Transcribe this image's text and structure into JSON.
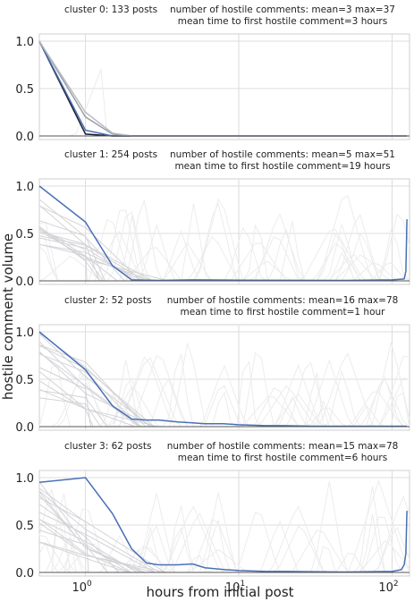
{
  "figure": {
    "xlabel": "hours from initial post",
    "ylabel": "hostile comment volume"
  },
  "chart_data": [
    {
      "type": "line",
      "title_left": "cluster 0: 133 posts",
      "title_right_line1": "number of hostile comments: mean=3 max=37",
      "title_right_line2": "mean time to first hostile comment=3 hours",
      "x_scale": "log",
      "xlim": [
        0.5,
        130
      ],
      "ylim": [
        0,
        1
      ],
      "yticks": [
        "0.0",
        "0.5",
        "1.0"
      ],
      "xticks": [
        "10^0",
        "10^1",
        "10^2"
      ],
      "grid": true,
      "series": [
        {
          "color": "#1a1a2e",
          "x": [
            0.5,
            1.0,
            1.5,
            2.0,
            5,
            10,
            50,
            125
          ],
          "y": [
            1.0,
            0.02,
            0.0,
            0.0,
            0.0,
            0.0,
            0.0,
            0.0
          ]
        },
        {
          "color": "#4a6fb5",
          "x": [
            0.5,
            1.0,
            1.5,
            2.0,
            10,
            125
          ],
          "y": [
            1.0,
            0.06,
            0.0,
            0.0,
            0.0,
            0.0
          ]
        },
        {
          "color": "#9aa0a8",
          "x": [
            0.5,
            1.0,
            1.5,
            2.0,
            10,
            125
          ],
          "y": [
            1.0,
            0.2,
            0.02,
            0.0,
            0.0,
            0.0
          ]
        },
        {
          "color": "#b8bcc2",
          "x": [
            0.5,
            1.0,
            1.5,
            2.0,
            10,
            125
          ],
          "y": [
            1.0,
            0.25,
            0.03,
            0.0,
            0.0,
            0.0
          ]
        }
      ]
    },
    {
      "type": "line",
      "title_left": "cluster 1: 254 posts",
      "title_right_line1": "number of hostile comments: mean=5 max=51",
      "title_right_line2": "mean time to first hostile comment=19 hours",
      "x_scale": "log",
      "xlim": [
        0.5,
        130
      ],
      "ylim": [
        0,
        1
      ],
      "yticks": [
        "0.0",
        "0.5",
        "1.0"
      ],
      "xticks": [
        "10^0",
        "10^1",
        "10^2"
      ],
      "grid": true,
      "series": [
        {
          "color": "#4a6fb5",
          "x": [
            0.5,
            1.0,
            1.5,
            2.0,
            3,
            5,
            10,
            20,
            50,
            100,
            120,
            123,
            125
          ],
          "y": [
            1.0,
            0.62,
            0.16,
            0.01,
            0.005,
            0.01,
            0.008,
            0.006,
            0.005,
            0.01,
            0.02,
            0.1,
            0.65
          ]
        }
      ]
    },
    {
      "type": "line",
      "title_left": "cluster 2:  52 posts",
      "title_right_line1": "number of hostile comments: mean=16 max=78",
      "title_right_line2": "mean time to first hostile comment=1 hour",
      "x_scale": "log",
      "xlim": [
        0.5,
        130
      ],
      "ylim": [
        0,
        1
      ],
      "yticks": [
        "0.0",
        "0.5",
        "1.0"
      ],
      "xticks": [
        "10^0",
        "10^1",
        "10^2"
      ],
      "grid": true,
      "series": [
        {
          "color": "#4a6fb5",
          "x": [
            0.5,
            1.0,
            1.5,
            2.0,
            2.5,
            3,
            4,
            5,
            6,
            8,
            10,
            15,
            20,
            30,
            50,
            100,
            125
          ],
          "y": [
            1.0,
            0.6,
            0.22,
            0.08,
            0.07,
            0.07,
            0.05,
            0.04,
            0.03,
            0.03,
            0.02,
            0.01,
            0.01,
            0.005,
            0.005,
            0.005,
            0.005
          ]
        }
      ]
    },
    {
      "type": "line",
      "title_left": "cluster 3:  62 posts",
      "title_right_line1": "number of hostile comments: mean=15 max=78",
      "title_right_line2": "mean time to first hostile comment=6 hours",
      "x_scale": "log",
      "xlim": [
        0.5,
        130
      ],
      "ylim": [
        0,
        1
      ],
      "yticks": [
        "0.0",
        "0.5",
        "1.0"
      ],
      "xticks": [
        "10^0",
        "10^1",
        "10^2"
      ],
      "grid": true,
      "series": [
        {
          "color": "#4a6fb5",
          "x": [
            0.5,
            1.0,
            1.5,
            2.0,
            2.5,
            3,
            4,
            5,
            6,
            8,
            10,
            15,
            20,
            50,
            100,
            115,
            120,
            123,
            125
          ],
          "y": [
            0.95,
            1.0,
            0.62,
            0.25,
            0.1,
            0.08,
            0.08,
            0.09,
            0.05,
            0.03,
            0.02,
            0.01,
            0.01,
            0.005,
            0.01,
            0.03,
            0.08,
            0.2,
            0.65
          ]
        }
      ]
    }
  ]
}
